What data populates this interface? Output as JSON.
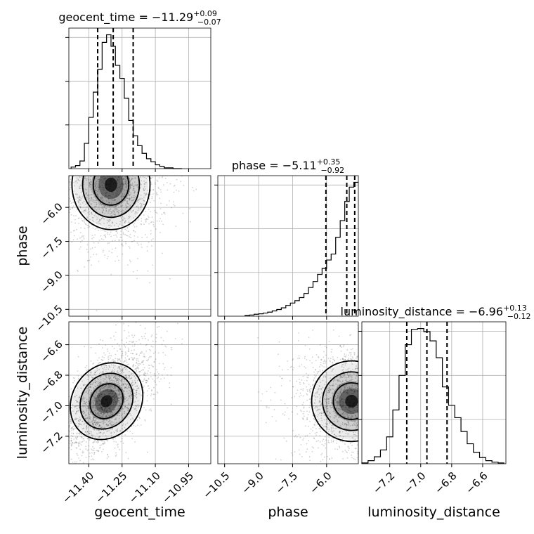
{
  "chart_data": {
    "type": "corner",
    "parameters": [
      "geocent_time",
      "phase",
      "luminosity_distance"
    ],
    "axis_labels": {
      "geocent_time": "geocent_time",
      "phase": "phase",
      "luminosity_distance": "luminosity_distance"
    },
    "ranges": {
      "geocent_time": [
        -11.49,
        -10.85
      ],
      "phase": [
        -10.8,
        -4.6
      ],
      "luminosity_distance": [
        -7.38,
        -6.45
      ]
    },
    "ticks": {
      "geocent_time": {
        "values": [
          -11.4,
          -11.25,
          -11.1,
          -10.95
        ],
        "labels": [
          "−11.40",
          "−11.25",
          "−11.10",
          "−10.95"
        ]
      },
      "phase": {
        "values": [
          -10.5,
          -9.0,
          -7.5,
          -6.0
        ],
        "labels": [
          "−10.5",
          "−9.0",
          "−7.5",
          "−6.0"
        ]
      },
      "phase_y": {
        "values": [
          -10.5,
          -9.0,
          -7.5,
          -6.0
        ],
        "labels": [
          "−10.5",
          "−9.0",
          "−7.5",
          "−6.0"
        ]
      },
      "luminosity_distance": {
        "values": [
          -7.2,
          -7.0,
          -6.8,
          -6.6
        ],
        "labels": [
          "−7.2",
          "−7.0",
          "−6.8",
          "−6.6"
        ]
      },
      "luminosity_distance_y": {
        "values": [
          -7.2,
          -7.0,
          -6.8,
          -6.6
        ],
        "labels": [
          "−7.2",
          "−7.0",
          "−6.8",
          "−6.6"
        ]
      }
    },
    "titles": [
      {
        "param": "geocent_time",
        "text": "geocent_time = −11.29",
        "plus": "+0.09",
        "minus": "−0.07"
      },
      {
        "param": "phase",
        "text": "phase = −5.11",
        "plus": "+0.35",
        "minus": "−0.92"
      },
      {
        "param": "luminosity_distance",
        "text": "luminosity_distance = −6.96",
        "plus": "+0.13",
        "minus": "−0.12"
      }
    ],
    "histograms": {
      "geocent_time": {
        "bins": [
          -11.48,
          -11.46,
          -11.44,
          -11.42,
          -11.4,
          -11.38,
          -11.36,
          -11.34,
          -11.32,
          -11.3,
          -11.28,
          -11.26,
          -11.24,
          -11.22,
          -11.2,
          -11.18,
          -11.16,
          -11.14,
          -11.12,
          -11.1,
          -11.08,
          -11.06,
          -11.04,
          -11.02,
          -11.0,
          -10.98
        ],
        "counts": [
          2,
          4,
          10,
          33,
          67,
          100,
          130,
          165,
          175,
          160,
          135,
          118,
          92,
          63,
          43,
          30,
          20,
          13,
          9,
          5,
          3,
          1,
          1,
          0,
          0
        ],
        "quantiles": [
          -11.36,
          -11.29,
          -11.2
        ]
      },
      "phase": {
        "bins": [
          -9.6,
          -9.4,
          -9.2,
          -9.0,
          -8.8,
          -8.6,
          -8.4,
          -8.2,
          -8.0,
          -7.8,
          -7.6,
          -7.4,
          -7.2,
          -7.0,
          -6.8,
          -6.6,
          -6.4,
          -6.2,
          -6.0,
          -5.8,
          -5.6,
          -5.4,
          -5.2,
          -5.0,
          -4.8,
          -4.6
        ],
        "counts": [
          0.3,
          0.5,
          0.8,
          1,
          1.3,
          1.7,
          2.2,
          2.8,
          3.5,
          4.5,
          5.5,
          6.5,
          7.8,
          9.5,
          12,
          14.5,
          17.5,
          20,
          23.5,
          26,
          33,
          40,
          48,
          54,
          56
        ],
        "quantiles": [
          -6.03,
          -5.11,
          -4.76
        ]
      },
      "luminosity_distance": {
        "bins": [
          -7.38,
          -7.34,
          -7.3,
          -7.26,
          -7.22,
          -7.18,
          -7.14,
          -7.1,
          -7.06,
          -7.02,
          -6.98,
          -6.94,
          -6.9,
          -6.86,
          -6.82,
          -6.78,
          -6.74,
          -6.7,
          -6.66,
          -6.62,
          -6.58,
          -6.54,
          -6.5,
          -6.46
        ],
        "counts": [
          1,
          4,
          9,
          18,
          35,
          70,
          115,
          155,
          175,
          176,
          172,
          160,
          138,
          100,
          76,
          60,
          42,
          26,
          15,
          8,
          4,
          2,
          1
        ],
        "quantiles": [
          -7.09,
          -6.96,
          -6.83
        ]
      }
    },
    "scatter_2d": [
      {
        "x": "geocent_time",
        "y": "phase",
        "center": [
          -11.3,
          -5.0
        ],
        "spread": [
          0.08,
          0.9
        ],
        "n": 1900,
        "density_levels": [
          0.12,
          0.39,
          0.68,
          0.86
        ]
      },
      {
        "x": "geocent_time",
        "y": "luminosity_distance",
        "center": [
          -11.32,
          -6.97
        ],
        "spread": [
          0.07,
          0.12
        ],
        "n": 2000,
        "density_levels": [
          0.12,
          0.39,
          0.68,
          0.86
        ]
      },
      {
        "x": "phase",
        "y": "luminosity_distance",
        "center": [
          -4.9,
          -6.97
        ],
        "spread": [
          0.8,
          0.12
        ],
        "n": 1800,
        "density_levels": [
          0.12,
          0.39,
          0.68,
          0.86
        ]
      }
    ]
  }
}
